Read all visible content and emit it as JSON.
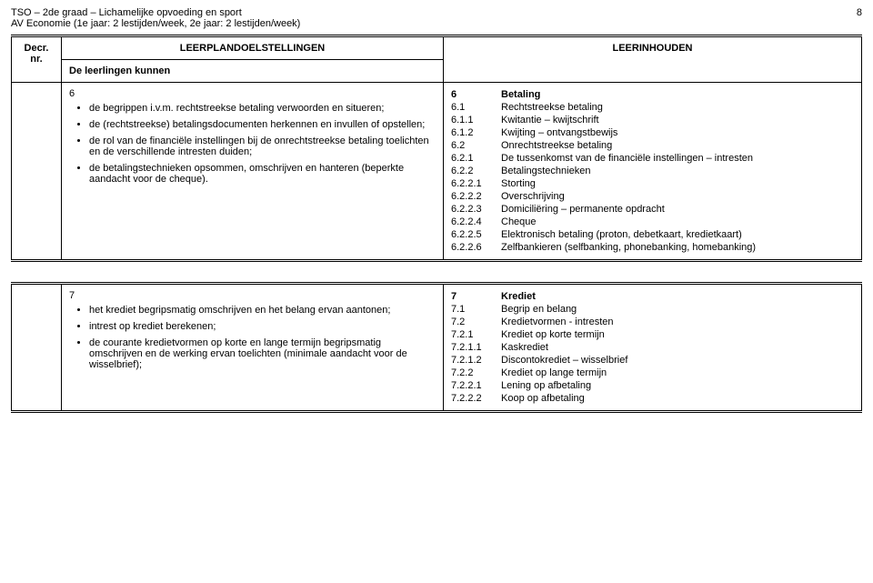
{
  "header": {
    "line1": "TSO – 2de graad – Lichamelijke opvoeding en sport",
    "line2": "AV Economie (1e jaar: 2 lestijden/week, 2e jaar: 2 lestijden/week)",
    "page_number": "8"
  },
  "table_headers": {
    "col_nr": "Decr. nr.",
    "col_left_top": "LEERPLANDOELSTELLINGEN",
    "col_left_sub": "De leerlingen kunnen",
    "col_right": "LEERINHOUDEN"
  },
  "section6": {
    "num": "6",
    "bullets": [
      "de begrippen i.v.m. rechtstreekse betaling verwoorden en situeren;",
      "de (rechtstreekse) betalingsdocumenten herkennen en invullen of opstellen;",
      "de rol van de financiële instellingen bij de onrechtstreekse betaling toelichten en de verschillende intresten duiden;",
      "de betalingstechnieken opsommen, omschrijven en hanteren (beperkte aandacht voor de cheque)."
    ],
    "right": [
      {
        "n": "6",
        "t": "Betaling",
        "bold": true
      },
      {
        "n": "6.1",
        "t": "Rechtstreekse betaling"
      },
      {
        "n": "6.1.1",
        "t": "Kwitantie – kwijtschrift"
      },
      {
        "n": "6.1.2",
        "t": "Kwijting – ontvangstbewijs"
      },
      {
        "n": "6.2",
        "t": "Onrechtstreekse betaling"
      },
      {
        "n": "6.2.1",
        "t": "De tussenkomst van de financiële instellingen – intresten"
      },
      {
        "n": "6.2.2",
        "t": "Betalingstechnieken"
      },
      {
        "n": "6.2.2.1",
        "t": "Storting"
      },
      {
        "n": "6.2.2.2",
        "t": "Overschrijving"
      },
      {
        "n": "6.2.2.3",
        "t": "Domiciliëring – permanente opdracht"
      },
      {
        "n": "6.2.2.4",
        "t": "Cheque"
      },
      {
        "n": "6.2.2.5",
        "t": "Elektronisch betaling (proton, debetkaart, kredietkaart)"
      },
      {
        "n": "6.2.2.6",
        "t": "Zelfbankieren (selfbanking, phonebanking, homebanking)"
      }
    ]
  },
  "section7": {
    "num": "7",
    "bullets": [
      "het krediet begripsmatig omschrijven en het belang ervan aantonen;",
      "intrest op krediet berekenen;",
      "de courante kredietvormen op korte en lange termijn begripsmatig omschrijven en de werking ervan toelichten (minimale aandacht voor de wisselbrief);"
    ],
    "right": [
      {
        "n": "7",
        "t": "Krediet",
        "bold": true
      },
      {
        "n": "7.1",
        "t": "Begrip en belang"
      },
      {
        "n": "7.2",
        "t": "Kredietvormen - intresten"
      },
      {
        "n": "7.2.1",
        "t": "Krediet op korte termijn"
      },
      {
        "n": "7.2.1.1",
        "t": "Kaskrediet"
      },
      {
        "n": "7.2.1.2",
        "t": "Discontokrediet – wisselbrief"
      },
      {
        "n": "7.2.2",
        "t": "Krediet op lange termijn"
      },
      {
        "n": "7.2.2.1",
        "t": "Lening op afbetaling"
      },
      {
        "n": "7.2.2.2",
        "t": "Koop op afbetaling"
      }
    ]
  }
}
